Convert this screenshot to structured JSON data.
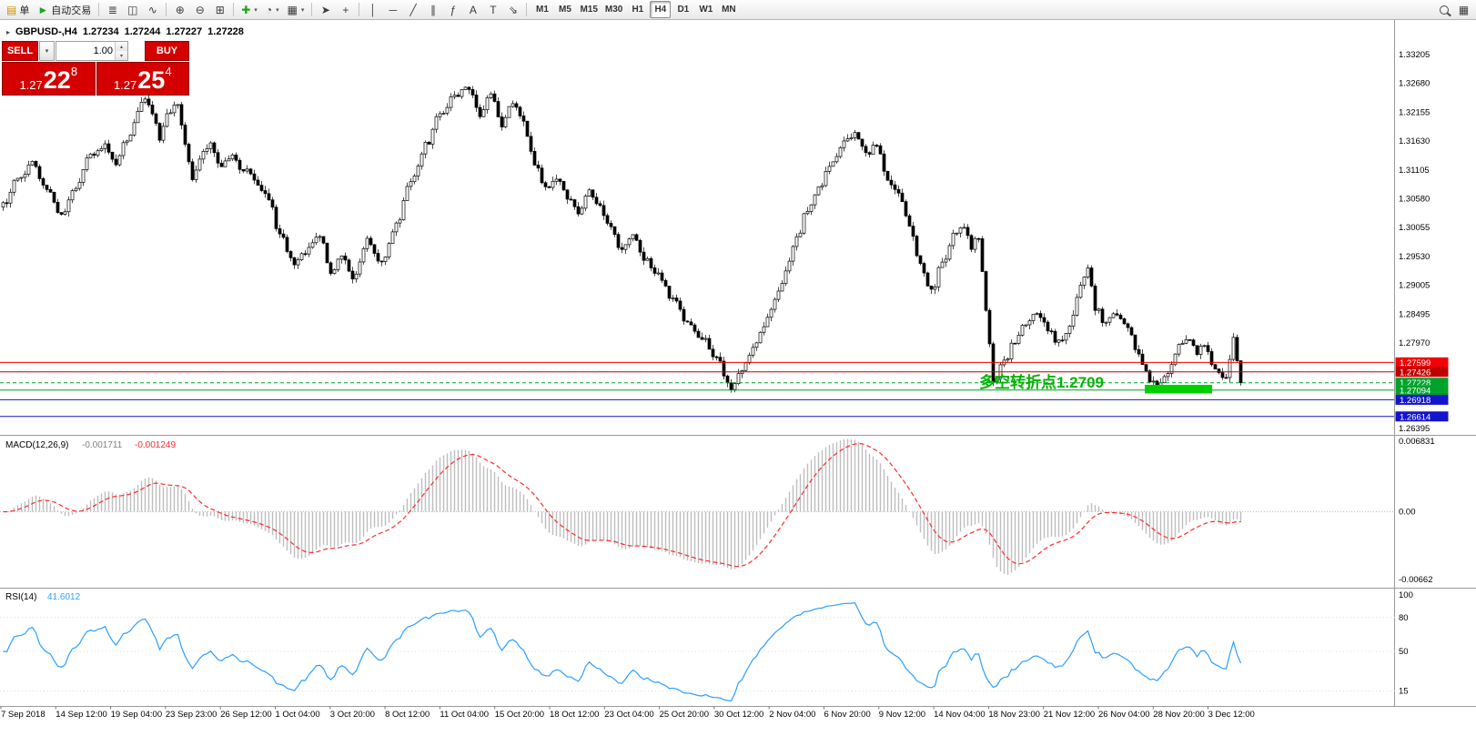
{
  "colors": {
    "panel_red": "#d40000",
    "bull": "#ffffff",
    "bear": "#000000",
    "wick": "#000000",
    "axis_border": "#9a9a9a"
  },
  "icons": {
    "chevron_down": "▾",
    "chevron_up": "▴",
    "marker": "▸"
  },
  "toolbar": {
    "left_buttons": [
      {
        "name": "new-order-button",
        "icon": "new-order-icon",
        "glyph": "▤",
        "glyph_color": "#c89600",
        "label": "单"
      },
      {
        "name": "auto-trading-button",
        "icon": "play-icon",
        "glyph": "►",
        "glyph_color": "#1fa21f",
        "label": "自动交易"
      }
    ],
    "groups": [
      {
        "name": "chart-type-group",
        "buttons": [
          {
            "name": "bars-chart-button",
            "icon": "bars-chart-icon",
            "glyph": "≣"
          },
          {
            "name": "candlestick-chart-button",
            "icon": "candlestick-chart-icon",
            "glyph": "◫"
          },
          {
            "name": "line-chart-button",
            "icon": "line-chart-icon",
            "glyph": "∿"
          }
        ]
      },
      {
        "name": "zoom-group",
        "buttons": [
          {
            "name": "zoom-in-button",
            "icon": "zoom-in-icon",
            "glyph": "⊕"
          },
          {
            "name": "zoom-out-button",
            "icon": "zoom-out-icon",
            "glyph": "⊖"
          },
          {
            "name": "tile-windows-button",
            "icon": "tile-windows-icon",
            "glyph": "⊞"
          }
        ]
      },
      {
        "name": "chart-tools-group",
        "buttons": [
          {
            "name": "indicators-button",
            "icon": "indicators-icon",
            "glyph": "✚",
            "glyph_color": "#1fa21f",
            "dropdown": true
          },
          {
            "name": "periods-button",
            "icon": "clock-icon",
            "glyph": "◔",
            "dropdown": true
          },
          {
            "name": "templates-button",
            "icon": "template-icon",
            "glyph": "▦",
            "dropdown": true
          }
        ]
      },
      {
        "name": "cursor-group",
        "buttons": [
          {
            "name": "cursor-button",
            "icon": "cursor-icon",
            "glyph": "➤"
          },
          {
            "name": "crosshair-button",
            "icon": "crosshair-icon",
            "glyph": "+"
          }
        ]
      },
      {
        "name": "drawing-group",
        "buttons": [
          {
            "name": "vertical-line-button",
            "icon": "vertical-line-icon",
            "glyph": "│"
          },
          {
            "name": "horizontal-line-button",
            "icon": "horizontal-line-icon",
            "glyph": "─"
          },
          {
            "name": "trendline-button",
            "icon": "trendline-icon",
            "glyph": "╱"
          },
          {
            "name": "channel-button",
            "icon": "channel-icon",
            "glyph": "∥"
          },
          {
            "name": "fibonacci-button",
            "icon": "fibonacci-icon",
            "glyph": "ƒ"
          },
          {
            "name": "text-button",
            "icon": "text-icon",
            "glyph": "A"
          },
          {
            "name": "label-button",
            "icon": "label-icon",
            "glyph": "T"
          },
          {
            "name": "arrows-button",
            "icon": "arrow-objects-icon",
            "glyph": "⇘"
          }
        ]
      }
    ],
    "timeframes": {
      "items": [
        "M1",
        "M5",
        "M15",
        "M30",
        "H1",
        "H4",
        "D1",
        "W1",
        "MN"
      ],
      "active": "H4"
    },
    "right_buttons": [
      {
        "name": "search-button",
        "icon": "search-icon",
        "glyph": "css-magnifier"
      },
      {
        "name": "quick-panel-button",
        "icon": "panel-icon",
        "glyph": "▦"
      }
    ]
  },
  "chart_header": {
    "symbol_period": "GBPUSD-,H4",
    "open": "1.27234",
    "high": "1.27244",
    "low": "1.27227",
    "close": "1.27228"
  },
  "trade_panel": {
    "sell_label": "SELL",
    "buy_label": "BUY",
    "volume": "1.00",
    "color": "#d40000",
    "sell_price": {
      "small": "1.27",
      "big": "22",
      "sup": "8"
    },
    "buy_price": {
      "small": "1.27",
      "big": "25",
      "sup": "4"
    }
  },
  "annotation": {
    "text": "多空转折点1.2709",
    "level": "1.2709",
    "color": "#00b400",
    "highlight_color": "#00d000"
  },
  "chart_data": [
    {
      "type": "candlestick",
      "symbol": "GBPUSD-",
      "timeframe": "H4",
      "last": 1.27228,
      "bid_label": "1.27228",
      "candle_count": 341,
      "y_axis_labels": [
        "1.33205",
        "1.32680",
        "1.32155",
        "1.31630",
        "1.31105",
        "1.30580",
        "1.30055",
        "1.29530",
        "1.29005",
        "1.28495",
        "1.27970",
        "1.26395"
      ],
      "levels": [
        {
          "price": 1.27599,
          "label": "1.27599",
          "color": "#f40000",
          "style": "solid"
        },
        {
          "price": 1.27426,
          "label": "1.27426",
          "color": "#c00000",
          "style": "solid"
        },
        {
          "price": 1.27228,
          "label": "1.27228",
          "color": "#00a22b",
          "style": "dashed",
          "role": "bid-line"
        },
        {
          "price": 1.27094,
          "label": "1.27094",
          "color": "#00a22b",
          "style": "solid"
        },
        {
          "price": 1.26918,
          "label": "1.26918",
          "color": "#1414cc",
          "style": "solid"
        },
        {
          "price": 1.26614,
          "label": "1.26614",
          "color": "#1414cc",
          "style": "solid"
        }
      ],
      "x_axis_labels": [
        "7 Sep 2018",
        "14 Sep 12:00",
        "19 Sep 04:00",
        "23 Sep 23:00",
        "26 Sep 12:00",
        "1 Oct 04:00",
        "3 Oct 20:00",
        "8 Oct 12:00",
        "11 Oct 04:00",
        "15 Oct 20:00",
        "18 Oct 12:00",
        "23 Oct 04:00",
        "25 Oct 20:00",
        "30 Oct 12:00",
        "2 Nov 04:00",
        "6 Nov 20:00",
        "9 Nov 12:00",
        "14 Nov 04:00",
        "18 Nov 23:00",
        "21 Nov 12:00",
        "26 Nov 04:00",
        "28 Nov 20:00",
        "3 Dec 12:00"
      ],
      "price_path": [
        [
          0,
          1.3045
        ],
        [
          4,
          1.3095
        ],
        [
          8,
          1.312
        ],
        [
          12,
          1.307
        ],
        [
          16,
          1.303
        ],
        [
          20,
          1.3075
        ],
        [
          24,
          1.314
        ],
        [
          28,
          1.3155
        ],
        [
          31,
          1.3125
        ],
        [
          34,
          1.3165
        ],
        [
          37,
          1.3215
        ],
        [
          39,
          1.3245
        ],
        [
          41,
          1.321
        ],
        [
          43,
          1.317
        ],
        [
          45,
          1.3208
        ],
        [
          48,
          1.323
        ],
        [
          50,
          1.316
        ],
        [
          52,
          1.309
        ],
        [
          54,
          1.3135
        ],
        [
          57,
          1.3155
        ],
        [
          60,
          1.312
        ],
        [
          63,
          1.3135
        ],
        [
          66,
          1.311
        ],
        [
          70,
          1.3085
        ],
        [
          73,
          1.306
        ],
        [
          76,
          1.299
        ],
        [
          80,
          1.294
        ],
        [
          84,
          1.2965
        ],
        [
          87,
          1.2995
        ],
        [
          90,
          1.292
        ],
        [
          93,
          1.295
        ],
        [
          96,
          1.2912
        ],
        [
          100,
          1.298
        ],
        [
          104,
          1.2945
        ],
        [
          108,
          1.301
        ],
        [
          112,
          1.3088
        ],
        [
          116,
          1.3155
        ],
        [
          120,
          1.321
        ],
        [
          124,
          1.3248
        ],
        [
          128,
          1.3262
        ],
        [
          131,
          1.321
        ],
        [
          134,
          1.3245
        ],
        [
          137,
          1.319
        ],
        [
          140,
          1.3232
        ],
        [
          143,
          1.3195
        ],
        [
          146,
          1.312
        ],
        [
          149,
          1.308
        ],
        [
          152,
          1.3098
        ],
        [
          155,
          1.3063
        ],
        [
          158,
          1.303
        ],
        [
          161,
          1.3072
        ],
        [
          164,
          1.304
        ],
        [
          167,
          1.3005
        ],
        [
          170,
          1.2963
        ],
        [
          173,
          1.2988
        ],
        [
          176,
          1.295
        ],
        [
          180,
          1.2922
        ],
        [
          184,
          1.2872
        ],
        [
          188,
          1.283
        ],
        [
          192,
          1.2806
        ],
        [
          196,
          1.277
        ],
        [
          200,
          1.2712
        ],
        [
          203,
          1.2745
        ],
        [
          206,
          1.279
        ],
        [
          209,
          1.283
        ],
        [
          212,
          1.2872
        ],
        [
          215,
          1.2922
        ],
        [
          218,
          1.2988
        ],
        [
          221,
          1.3038
        ],
        [
          224,
          1.308
        ],
        [
          228,
          1.313
        ],
        [
          232,
          1.3165
        ],
        [
          234,
          1.318
        ],
        [
          237,
          1.314
        ],
        [
          240,
          1.3155
        ],
        [
          243,
          1.309
        ],
        [
          246,
          1.3064
        ],
        [
          249,
          1.301
        ],
        [
          252,
          1.294
        ],
        [
          255,
          1.289
        ],
        [
          258,
          1.294
        ],
        [
          261,
          1.299
        ],
        [
          264,
          1.3006
        ],
        [
          266,
          1.297
        ],
        [
          268,
          1.299
        ],
        [
          270,
          1.285
        ],
        [
          272,
          1.2727
        ],
        [
          275,
          1.276
        ],
        [
          278,
          1.28
        ],
        [
          281,
          1.283
        ],
        [
          284,
          1.2852
        ],
        [
          287,
          1.282
        ],
        [
          290,
          1.2795
        ],
        [
          293,
          1.282
        ],
        [
          296,
          1.29
        ],
        [
          298,
          1.2928
        ],
        [
          300,
          1.286
        ],
        [
          303,
          1.283
        ],
        [
          306,
          1.2852
        ],
        [
          309,
          1.282
        ],
        [
          312,
          1.277
        ],
        [
          315,
          1.273
        ],
        [
          317,
          1.2715
        ],
        [
          320,
          1.2745
        ],
        [
          323,
          1.279
        ],
        [
          326,
          1.2806
        ],
        [
          328,
          1.278
        ],
        [
          330,
          1.279
        ],
        [
          332,
          1.276
        ],
        [
          334,
          1.274
        ],
        [
          336,
          1.2728
        ],
        [
          338,
          1.28
        ],
        [
          339,
          1.276
        ],
        [
          340,
          1.27228
        ]
      ]
    },
    {
      "type": "macd",
      "label": "MACD(12,26,9)",
      "value_main": "-0.001711",
      "value_signal": "-0.001249",
      "params": {
        "fast": 12,
        "slow": 26,
        "signal": 9
      },
      "y_axis_labels": [
        "0.006831",
        "0.00",
        "-0.00662"
      ],
      "histogram_color": "#bdbdbd",
      "signal_color": "#ff2a2a"
    },
    {
      "type": "rsi",
      "label": "RSI(14)",
      "value": "41.6012",
      "period": 14,
      "y_axis_labels": [
        "100",
        "80",
        "50",
        "15"
      ],
      "line_color": "#2a9fff"
    }
  ]
}
